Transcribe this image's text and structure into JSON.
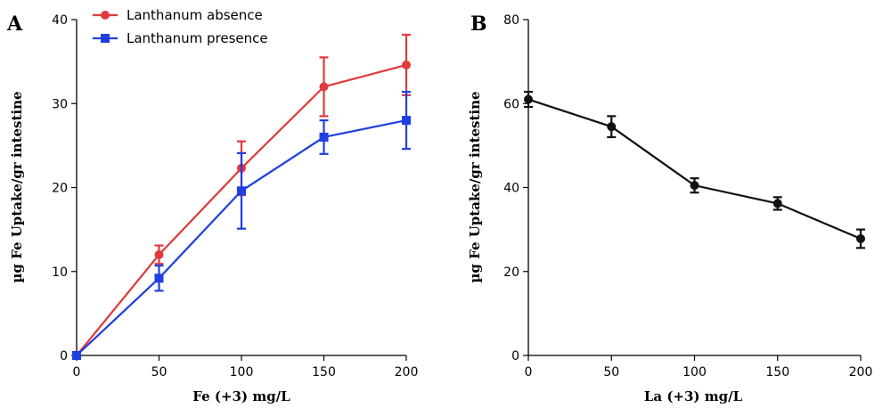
{
  "chart_data": [
    {
      "type": "line",
      "panel_label": "A",
      "xlabel": "Fe (+3) mg/L",
      "ylabel": "µg Fe Uptake/gr intestine",
      "x": [
        0,
        50,
        100,
        150,
        200
      ],
      "xlim": [
        0,
        200
      ],
      "ylim": [
        0,
        40
      ],
      "xticks": [
        0,
        50,
        100,
        150,
        200
      ],
      "yticks": [
        0,
        10,
        20,
        30,
        40
      ],
      "grid": false,
      "legend_position": "top-left",
      "series": [
        {
          "name": "Lanthanum absence",
          "color": "#e03a3a",
          "marker": "circle",
          "values": [
            0,
            12,
            22.3,
            32,
            34.6
          ],
          "errors": [
            0,
            1.1,
            3.2,
            3.5,
            3.6
          ]
        },
        {
          "name": "Lanthanum presence",
          "color": "#1f3fe0",
          "marker": "square",
          "values": [
            0,
            9.2,
            19.6,
            26,
            28
          ],
          "errors": [
            0,
            1.5,
            4.5,
            2,
            3.4
          ]
        }
      ]
    },
    {
      "type": "line",
      "panel_label": "B",
      "xlabel": "La (+3) mg/L",
      "ylabel": "µg Fe Uptake/gr intestine",
      "x": [
        0,
        50,
        100,
        150,
        200
      ],
      "xlim": [
        0,
        200
      ],
      "ylim": [
        0,
        80
      ],
      "xticks": [
        0,
        50,
        100,
        150,
        200
      ],
      "yticks": [
        0,
        20,
        40,
        60,
        80
      ],
      "grid": false,
      "series": [
        {
          "color": "#111111",
          "marker": "circle",
          "values": [
            61,
            54.5,
            40.5,
            36.2,
            27.8
          ],
          "errors": [
            1.8,
            2.5,
            1.7,
            1.5,
            2.2
          ]
        }
      ]
    }
  ]
}
